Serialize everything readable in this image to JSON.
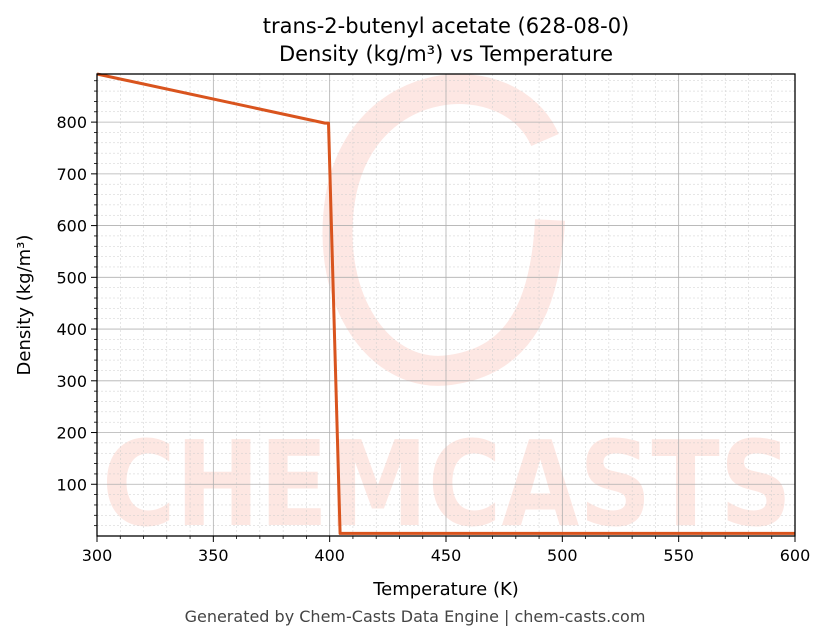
{
  "chart_data": {
    "type": "line",
    "title": "trans-2-butenyl acetate (628-08-0)",
    "subtitle": "Density (kg/m³) vs Temperature",
    "xlabel": "Temperature (K)",
    "ylabel": "Density (kg/m³)",
    "xlim": [
      300,
      600
    ],
    "ylim": [
      0,
      893
    ],
    "x_ticks": [
      300,
      350,
      400,
      450,
      500,
      550,
      600
    ],
    "y_ticks": [
      100,
      200,
      300,
      400,
      500,
      600,
      700,
      800
    ],
    "grid": true,
    "line_color": "#d9541e",
    "series": [
      {
        "points": [
          [
            300,
            893
          ],
          [
            398,
            798
          ],
          [
            399.5,
            798
          ],
          [
            404.5,
            5
          ],
          [
            600,
            5
          ]
        ]
      }
    ]
  },
  "watermark": "CHEMCASTS",
  "footer": "Generated by Chem-Casts Data Engine | chem-casts.com"
}
